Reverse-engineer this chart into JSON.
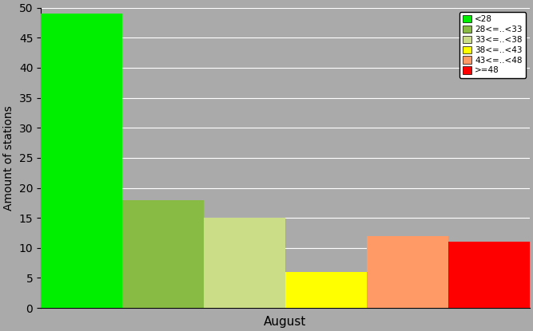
{
  "categories": [
    "<28",
    "28<=..<33",
    "33<=..<38",
    "38<=..<43",
    "43<=..<48",
    ">=48"
  ],
  "values": [
    49,
    18,
    15,
    6,
    12,
    11
  ],
  "colors": [
    "#00ee00",
    "#88bb44",
    "#ccdd88",
    "#ffff00",
    "#ff9966",
    "#ff0000"
  ],
  "xlabel": "August",
  "ylabel": "Amount of stations",
  "ylim": [
    0,
    50
  ],
  "yticks": [
    0,
    5,
    10,
    15,
    20,
    25,
    30,
    35,
    40,
    45,
    50
  ],
  "background_color": "#aaaaaa",
  "plot_bg_color": "#aaaaaa",
  "legend_labels": [
    "<28",
    "28<=..<33",
    "33<=..<38",
    "38<=..<43",
    "43<=..<48",
    ">=48"
  ],
  "legend_colors": [
    "#00ee00",
    "#88bb44",
    "#ccdd88",
    "#ffff00",
    "#ff9966",
    "#ff0000"
  ],
  "figwidth": 6.67,
  "figheight": 4.15,
  "dpi": 100
}
